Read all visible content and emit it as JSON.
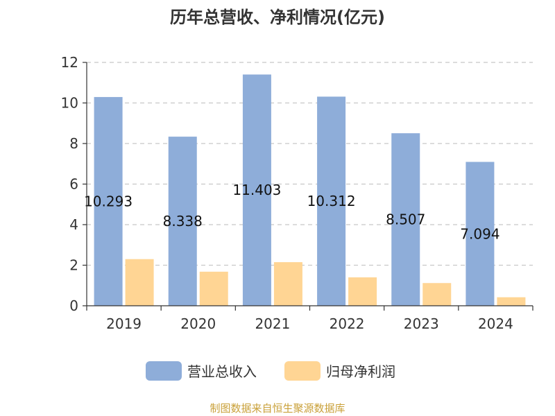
{
  "chart_data": {
    "type": "bar",
    "title": "历年总营收、净利情况(亿元)",
    "categories": [
      "2019",
      "2020",
      "2021",
      "2022",
      "2023",
      "2024"
    ],
    "ylim": [
      0,
      12
    ],
    "yticks": [
      0,
      2,
      4,
      6,
      8,
      10,
      12
    ],
    "grid": true,
    "legend_position": "bottom",
    "series": [
      {
        "name": "营业总收入",
        "values": [
          10.293,
          8.338,
          11.403,
          10.312,
          8.507,
          7.094
        ],
        "labels": [
          "10.293",
          "8.338",
          "11.403",
          "10.312",
          "8.507",
          "7.094"
        ],
        "color": "#8eadd9"
      },
      {
        "name": "归母净利润",
        "values": [
          2.3,
          1.68,
          2.15,
          1.4,
          1.12,
          0.42
        ],
        "color": "#ffd594"
      }
    ]
  },
  "source": "制图数据来自恒生聚源数据库"
}
